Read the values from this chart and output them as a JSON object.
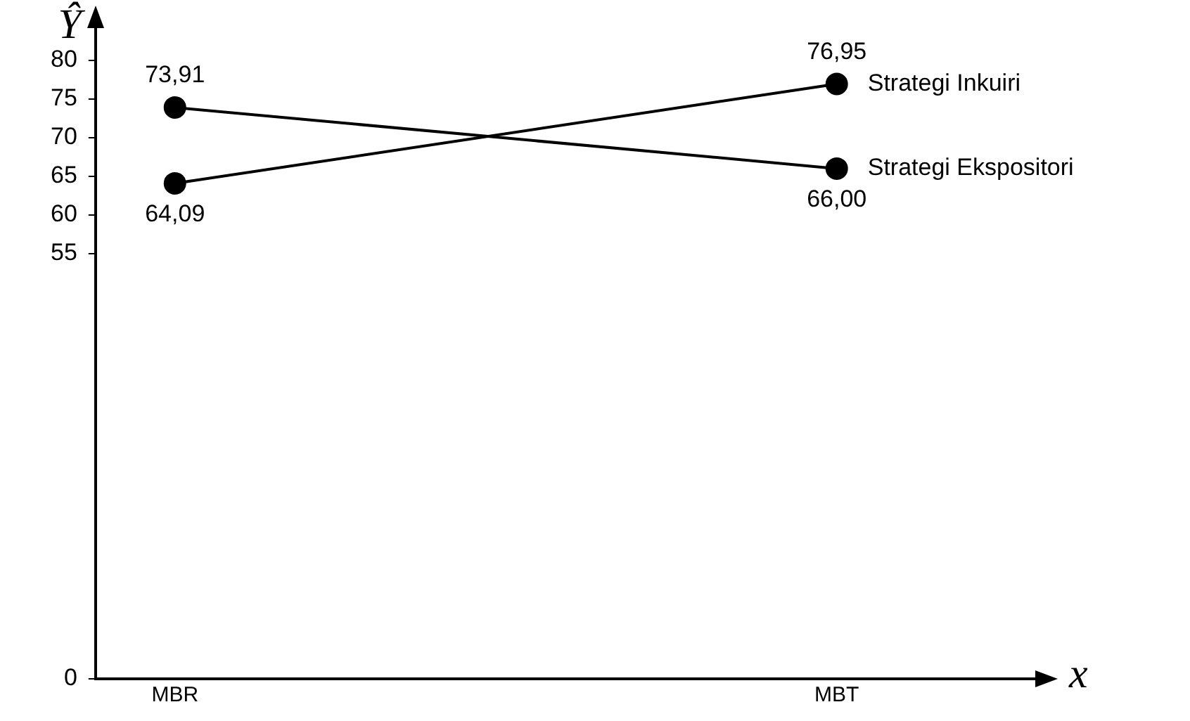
{
  "chart_data": {
    "type": "line",
    "xlabel": "x",
    "ylabel": "Ŷ",
    "categories": [
      "MBR",
      "MBT"
    ],
    "series": [
      {
        "name": "Strategi Inkuiri",
        "color": "#000000",
        "values": [
          64.09,
          76.95
        ],
        "value_labels": [
          "64,09",
          "76,95"
        ]
      },
      {
        "name": "Strategi Ekspositori",
        "color": "#000000",
        "values": [
          73.91,
          66.0
        ],
        "value_labels": [
          "73,91",
          "66,00"
        ]
      }
    ],
    "ylim": [
      0,
      84.5
    ],
    "yticks": [
      0,
      55,
      60,
      65,
      70,
      75,
      80
    ],
    "grid": false,
    "legend": false,
    "marker": "circle",
    "line_style": "solid"
  }
}
